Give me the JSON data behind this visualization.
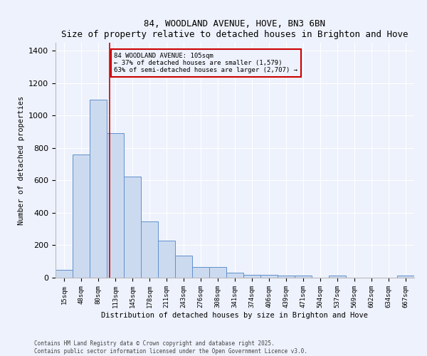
{
  "title": "84, WOODLAND AVENUE, HOVE, BN3 6BN",
  "subtitle": "Size of property relative to detached houses in Brighton and Hove",
  "xlabel": "Distribution of detached houses by size in Brighton and Hove",
  "ylabel": "Number of detached properties",
  "bar_labels": [
    "15sqm",
    "48sqm",
    "80sqm",
    "113sqm",
    "145sqm",
    "178sqm",
    "211sqm",
    "243sqm",
    "276sqm",
    "308sqm",
    "341sqm",
    "374sqm",
    "406sqm",
    "439sqm",
    "471sqm",
    "504sqm",
    "537sqm",
    "569sqm",
    "602sqm",
    "634sqm",
    "667sqm"
  ],
  "bar_values": [
    50,
    760,
    1100,
    890,
    625,
    345,
    230,
    135,
    68,
    68,
    30,
    18,
    18,
    15,
    12,
    0,
    12,
    0,
    0,
    0,
    12
  ],
  "bar_color": "#ccdaf0",
  "bar_edge_color": "#6090cc",
  "ylim": [
    0,
    1450
  ],
  "yticks": [
    0,
    200,
    400,
    600,
    800,
    1000,
    1200,
    1400
  ],
  "vline_x": 2.67,
  "vline_color": "#cc0000",
  "annotation_title": "84 WOODLAND AVENUE: 105sqm",
  "annotation_line1": "← 37% of detached houses are smaller (1,579)",
  "annotation_line2": "63% of semi-detached houses are larger (2,707) →",
  "annotation_box_color": "#cc0000",
  "footer1": "Contains HM Land Registry data © Crown copyright and database right 2025.",
  "footer2": "Contains public sector information licensed under the Open Government Licence v3.0.",
  "bg_color": "#eef2fc",
  "grid_color": "#ffffff"
}
